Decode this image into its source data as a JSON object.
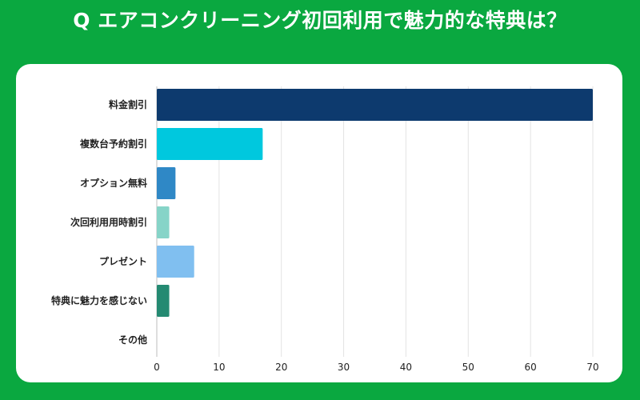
{
  "title": "Q エアコンクリーニング初回利用で魅力的な特典は？",
  "chart_data": {
    "type": "bar",
    "orientation": "horizontal",
    "title": "Q エアコンクリーニング初回利用で魅力的な特典は？",
    "categories": [
      "料金割引",
      "複数台予約割引",
      "オプション無料",
      "次回利用用時割引",
      "プレゼント",
      "特典に魅力を感じない",
      "その他"
    ],
    "values": [
      70,
      17,
      3,
      2,
      6,
      2,
      0
    ],
    "colors": [
      "#0d3a6e",
      "#00c8de",
      "#2f88c6",
      "#86d4c8",
      "#80bff0",
      "#248a72",
      "#e0e0e0"
    ],
    "xlim": [
      0,
      70
    ],
    "xticks": [
      0,
      10,
      20,
      30,
      40,
      50,
      60,
      70
    ],
    "grid": true
  }
}
